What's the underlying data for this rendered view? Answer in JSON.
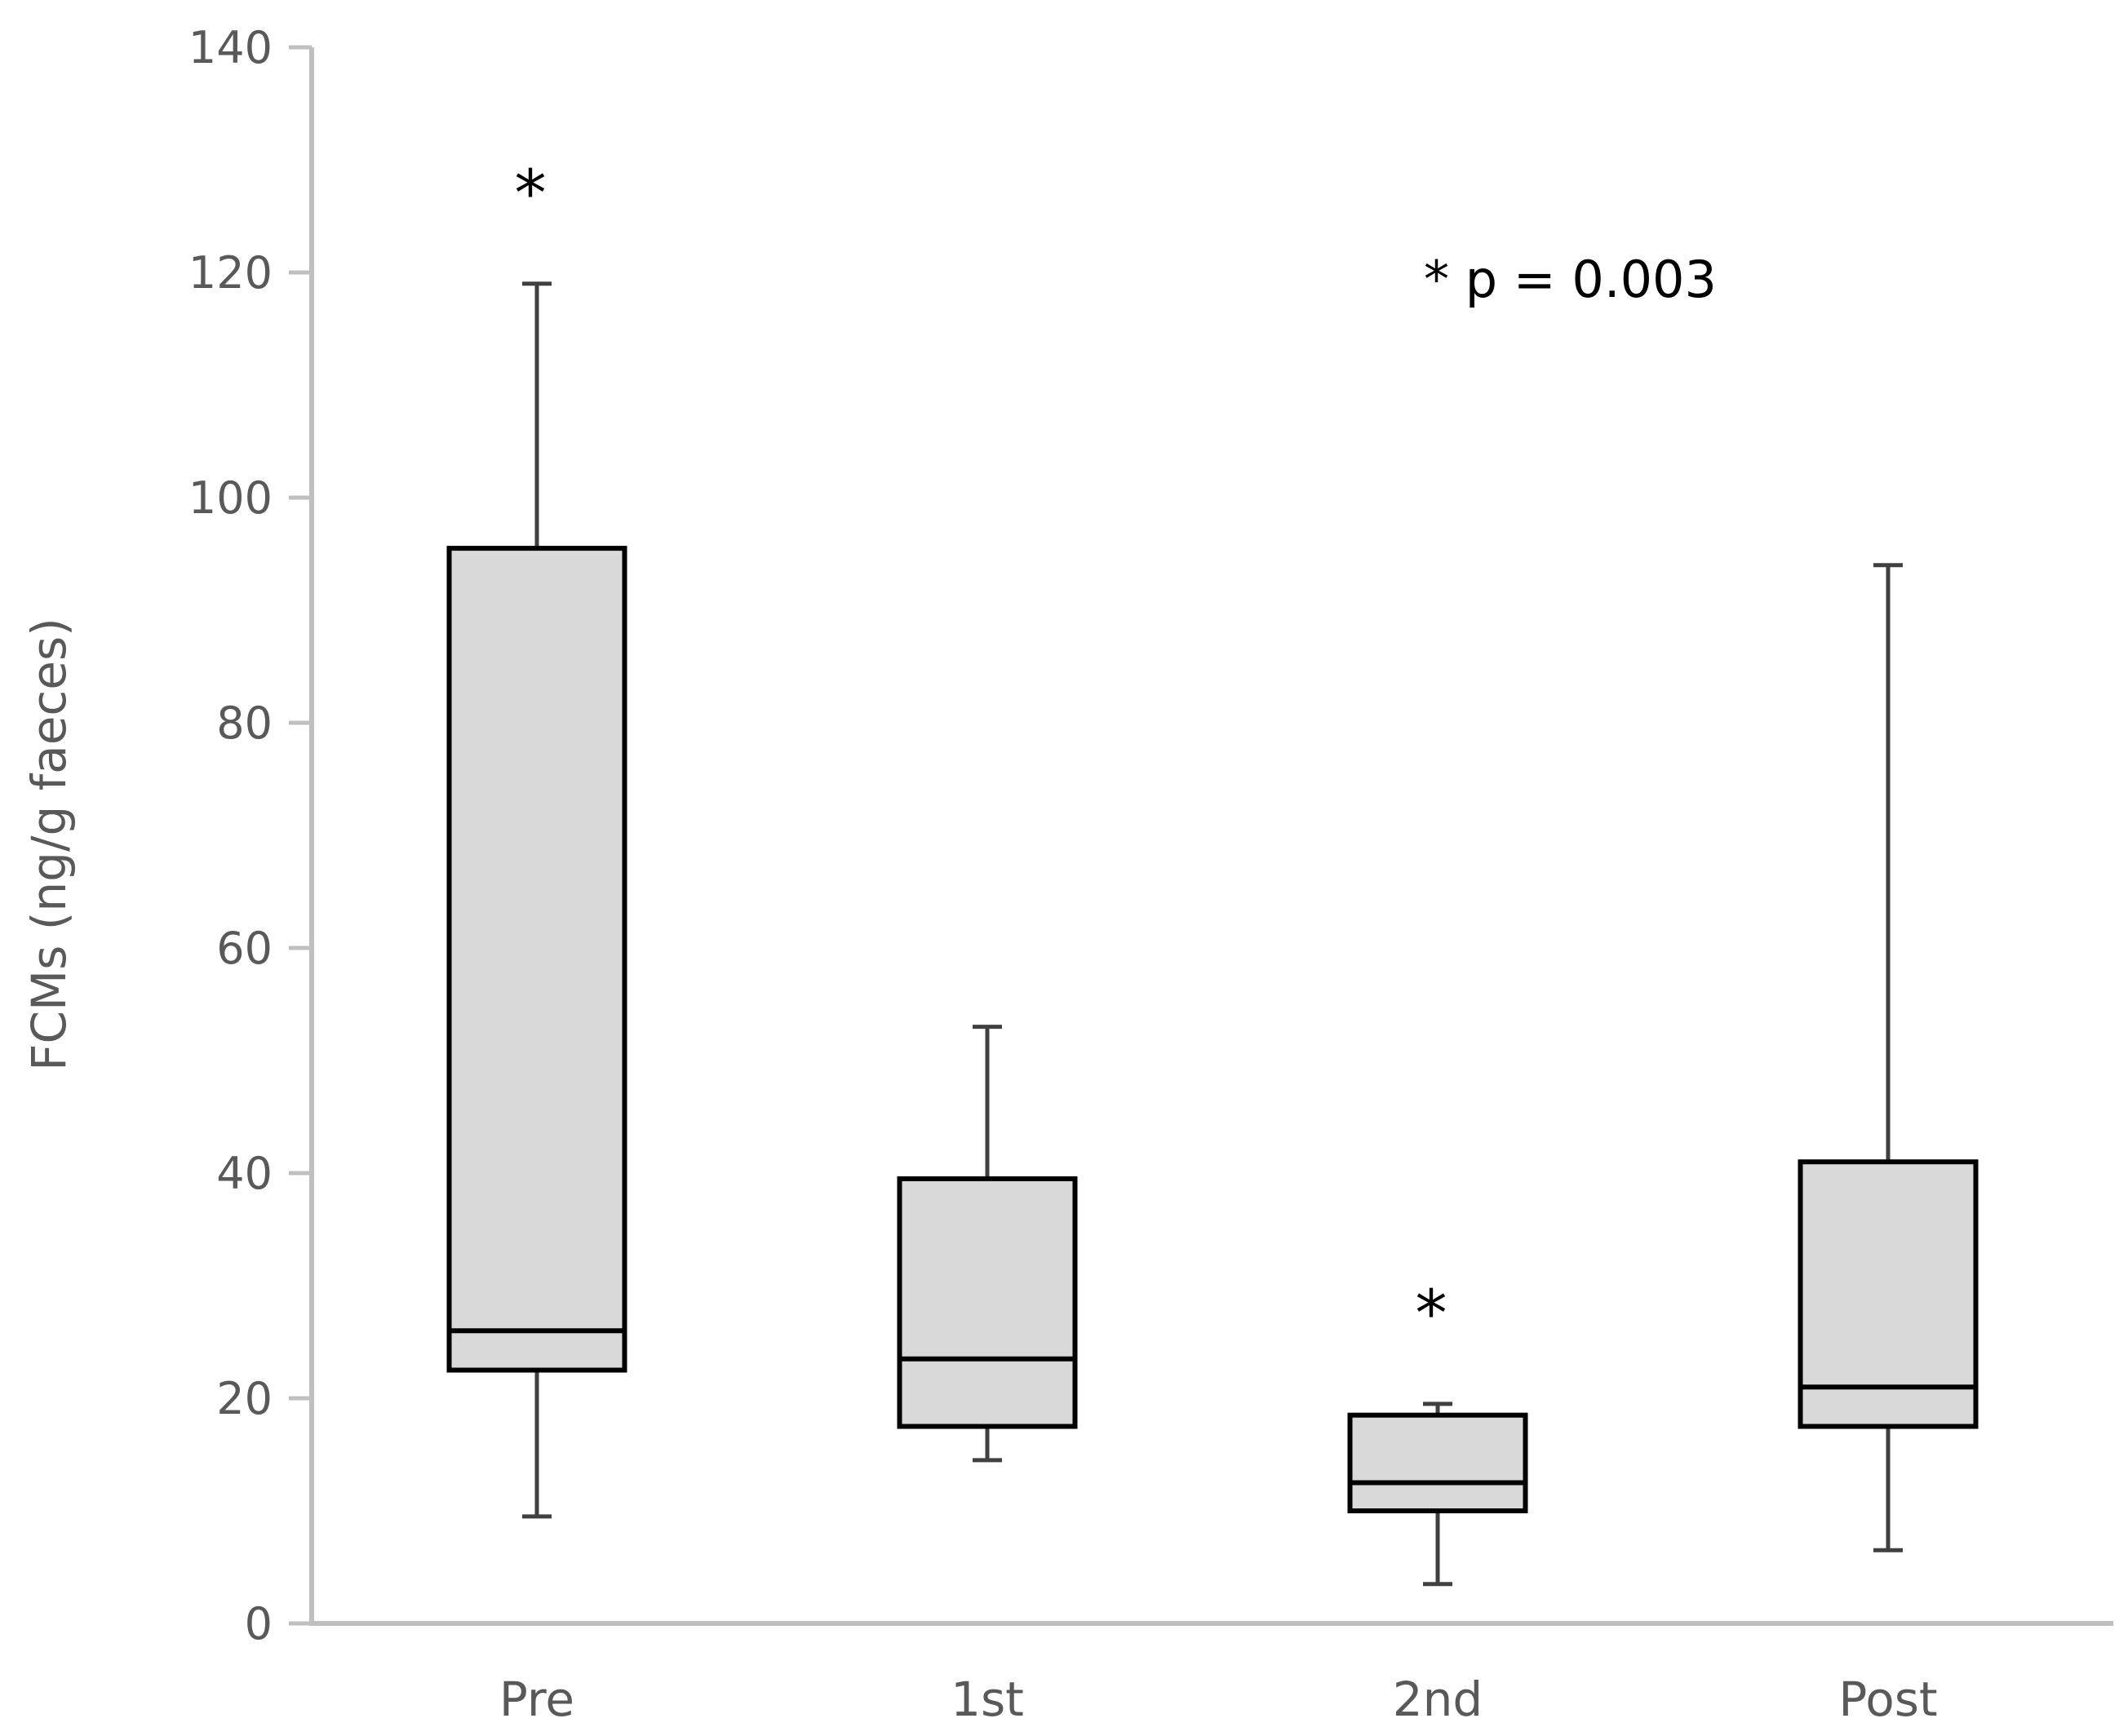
{
  "chart_data": {
    "type": "boxplot",
    "categories": [
      "Pre",
      "1st",
      "2nd",
      "Post"
    ],
    "ylabel": "FCMs (ng/g faeces)",
    "xlabel": "",
    "ylim": [
      0,
      140
    ],
    "yticks": [
      0,
      20,
      40,
      60,
      80,
      100,
      120,
      140
    ],
    "boxes": [
      {
        "category": "Pre",
        "min": 9.5,
        "q1": 22.5,
        "median": 26.0,
        "q3": 95.5,
        "max": 119.0,
        "marker": "*"
      },
      {
        "category": "1st",
        "min": 14.5,
        "q1": 17.5,
        "median": 23.5,
        "q3": 39.5,
        "max": 53.0,
        "marker": ""
      },
      {
        "category": "2nd",
        "min": 3.5,
        "q1": 10.0,
        "median": 12.5,
        "q3": 18.5,
        "max": 19.5,
        "marker": "*"
      },
      {
        "category": "Post",
        "min": 6.5,
        "q1": 17.5,
        "median": 21.0,
        "q3": 41.0,
        "max": 94.0,
        "marker": ""
      }
    ],
    "annotation": "* p = 0.003",
    "colors": {
      "box_fill": "#d9d9d9",
      "box_stroke": "#000000",
      "whisker": "#404040",
      "axis": "#bfbfbf",
      "text": "#595959"
    },
    "grid": false,
    "legend": "none"
  }
}
